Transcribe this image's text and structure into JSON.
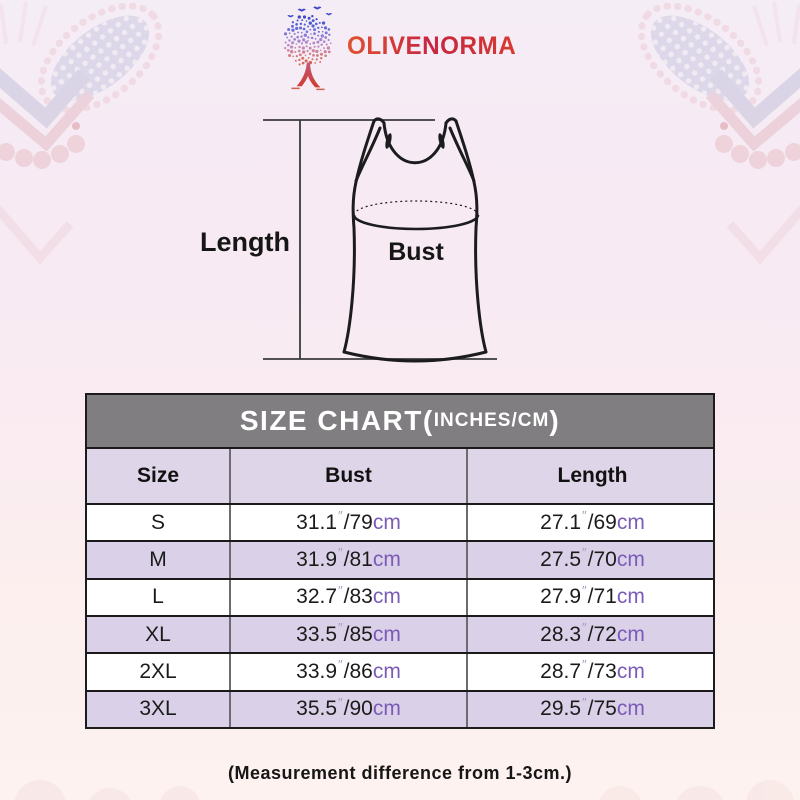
{
  "brand": {
    "name": "OLIVENORMA",
    "logo_icon": "pointillist-tree",
    "name_color": "#d02f38"
  },
  "diagram": {
    "garment": "racerback-tank-top",
    "length_label": "Length",
    "bust_label": "Bust"
  },
  "size_chart": {
    "title_main": "SIZE CHART(",
    "title_unit": "INCHES/CM",
    "title_close": ")",
    "columns": [
      "Size",
      "Bust",
      "Length"
    ],
    "inch_symbol": "″",
    "separator": "/",
    "cm_label": "cm",
    "rows": [
      {
        "size": "S",
        "bust_in": "31.1",
        "bust_cm": "79",
        "length_in": "27.1",
        "length_cm": "69"
      },
      {
        "size": "M",
        "bust_in": "31.9",
        "bust_cm": "81",
        "length_in": "27.5",
        "length_cm": "70"
      },
      {
        "size": "L",
        "bust_in": "32.7",
        "bust_cm": "83",
        "length_in": "27.9",
        "length_cm": "71"
      },
      {
        "size": "XL",
        "bust_in": "33.5",
        "bust_cm": "85",
        "length_in": "28.3",
        "length_cm": "72"
      },
      {
        "size": "2XL",
        "bust_in": "33.9",
        "bust_cm": "86",
        "length_in": "28.7",
        "length_cm": "73"
      },
      {
        "size": "3XL",
        "bust_in": "35.5",
        "bust_cm": "90",
        "length_in": "29.5",
        "length_cm": "75"
      }
    ]
  },
  "chart_data": {
    "type": "table",
    "title": "SIZE CHART(INCHES/CM)",
    "columns": [
      "Size",
      "Bust",
      "Length"
    ],
    "rows": [
      [
        "S",
        "31.1″/79cm",
        "27.1″/69cm"
      ],
      [
        "M",
        "31.9″/81cm",
        "27.5″/70cm"
      ],
      [
        "L",
        "32.7″/83cm",
        "27.9″/71cm"
      ],
      [
        "XL",
        "33.5″/85cm",
        "28.3″/72cm"
      ],
      [
        "2XL",
        "33.9″/86cm",
        "28.7″/73cm"
      ],
      [
        "3XL",
        "35.5″/90cm",
        "29.5″/75cm"
      ]
    ]
  },
  "footer": {
    "note": "(Measurement difference from 1-3cm.)"
  },
  "colors": {
    "table_title_bg": "#807e80",
    "table_header_bg": "#ded5e9",
    "row_alt_bg": "#dad0e7",
    "cm_text": "#7a5cb8",
    "inch_mark": "#a79ebb",
    "brand_red": "#d02f38",
    "line_black": "#1a1a1a"
  }
}
